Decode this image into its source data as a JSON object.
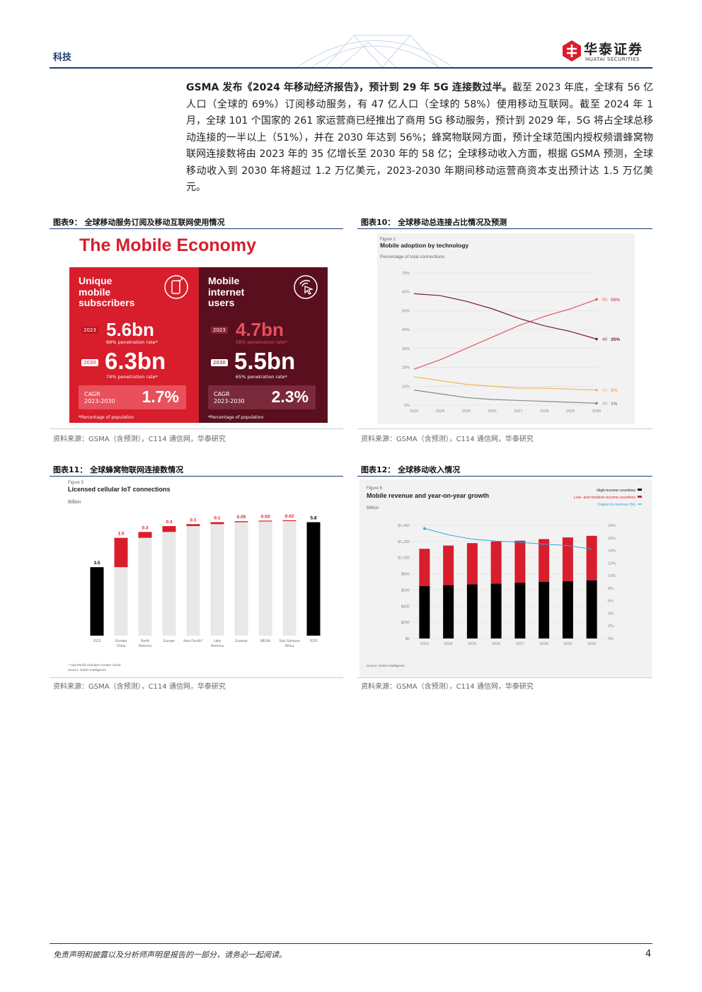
{
  "header": {
    "sector": "科技",
    "logo_cn": "华泰证券",
    "logo_en": "HUATAI SECURITIES"
  },
  "body": {
    "lead_bold": "GSMA 发布《2024 年移动经济报告》，预计到 29 年 5G 连接数过半。",
    "text": "截至 2023 年底，全球有 56 亿人口（全球的 69%）订阅移动服务，有 47 亿人口（全球的 58%）使用移动互联网。截至 2024 年 1 月，全球 101 个国家的 261 家运营商已经推出了商用 5G 移动服务，预计到 2029 年，5G 将占全球总移动连接的一半以上（51%），并在 2030 年达到 56%；蜂窝物联网方面，预计全球范围内授权频谱蜂窝物联网连接数将由 2023 年的 35 亿增长至 2030 年的 58 亿；全球移动收入方面，根据 GSMA 预测，全球移动收入到 2030 年将超过 1.2 万亿美元，2023-2030 年期间移动运营商资本支出预计达 1.5 万亿美元。"
  },
  "figures": {
    "fig9": {
      "label": "图表9：  全球移动服务订阅及移动互联网使用情况",
      "source": "资料来源：GSMA（含预测），C114 通信网，华泰研究",
      "title": "The Mobile Economy",
      "left": {
        "heading_lines": [
          "Unique",
          "mobile",
          "subscribers"
        ],
        "icon": "phone-check-icon",
        "y1": "2023",
        "v1": "5.6bn",
        "p1": "69% penetration rate*",
        "y2": "2030",
        "v2": "6.3bn",
        "p2": "74% penetration rate*",
        "cagr_label": "CAGR\n2023-2030",
        "cagr": "1.7%",
        "footnote": "*Percentage of population"
      },
      "right": {
        "heading_lines": [
          "Mobile",
          "internet",
          "users"
        ],
        "icon": "cursor-signal-icon",
        "y1": "2023",
        "v1": "4.7bn",
        "p1": "58% penetration rate*",
        "y2": "2030",
        "v2": "5.5bn",
        "p2": "65% penetration rate*",
        "cagr_label": "CAGR\n2023-2030",
        "cagr": "2.3%",
        "footnote": "*Percentage of population"
      },
      "colors": {
        "red": "#d81e2c",
        "maroon": "#5a0f1f"
      }
    },
    "fig10": {
      "label": "图表10：  全球移动总连接占比情况及预测",
      "source": "资料来源：GSMA（含预测），C114 通信网，华泰研究",
      "figure_no": "Figure 2",
      "chart_title": "Mobile adoption by technology",
      "subtitle": "Percentage of total connections"
    },
    "fig11": {
      "label": "图表11：  全球蜂窝物联网连接数情况",
      "source": "资料来源：GSMA（含预测），C114 通信网，华泰研究",
      "figure_no": "Figure 5",
      "chart_title": "Licensed cellular IoT connections",
      "unit": "Billion",
      "footnote1": "* Asia Pacific excludes Greater China",
      "footnote2": "Source: GSMA Intelligence"
    },
    "fig12": {
      "label": "图表12：  全球移动收入情况",
      "source": "资料来源：GSMA（含预测），C114 通信网，华泰研究",
      "figure_no": "Figure 6",
      "chart_title": "Mobile revenue and year-on-year growth",
      "unit": "Billion",
      "legend": [
        "High-income countries",
        "Low- and medium-income countries",
        "Capex to revenue (%)"
      ],
      "source_note": "Source: GSMA Intelligence"
    }
  },
  "chart_data": [
    {
      "type": "line",
      "title": "Mobile adoption by technology",
      "ylabel": "Percentage of total connections",
      "x": [
        2023,
        2024,
        2025,
        2026,
        2027,
        2028,
        2029,
        2030
      ],
      "ylim": [
        0,
        70
      ],
      "yticks": [
        "0%",
        "10%",
        "20%",
        "30%",
        "40%",
        "50%",
        "60%",
        "70%"
      ],
      "series": [
        {
          "name": "5G",
          "label": "5G",
          "end_label": "56%",
          "color": "#e05a63",
          "values": [
            19,
            24,
            30,
            36,
            42,
            47,
            51,
            56
          ]
        },
        {
          "name": "4G",
          "label": "4G",
          "end_label": "35%",
          "color": "#7a1a2e",
          "values": [
            59,
            58,
            55,
            51,
            46,
            42,
            39,
            35
          ]
        },
        {
          "name": "3G",
          "label": "3G",
          "end_label": "8%",
          "color": "#f2b35a",
          "values": [
            15,
            13,
            11,
            10,
            9,
            9,
            8.5,
            8
          ]
        },
        {
          "name": "2G",
          "label": "2G",
          "end_label": "1%",
          "color": "#888888",
          "values": [
            8,
            6,
            4,
            3,
            2.5,
            2,
            1.5,
            1
          ]
        }
      ]
    },
    {
      "type": "bar",
      "title": "Licensed cellular IoT connections",
      "ylabel": "Billion",
      "categories": [
        "2023",
        "Greater China",
        "North America",
        "Europe",
        "Asia Pacific*",
        "Latin America",
        "Eurasia",
        "MENA",
        "Sub-Saharan Africa",
        "2030"
      ],
      "values": [
        3.5,
        1.5,
        0.3,
        0.3,
        0.1,
        0.1,
        0.05,
        0.03,
        0.02,
        5.8
      ],
      "labels": [
        "3.5",
        "1.5",
        "0.3",
        "0.3",
        "0.1",
        "0.1",
        "0.05",
        "0.03",
        "0.02",
        "5.8"
      ],
      "kind": [
        "total",
        "increment",
        "increment",
        "increment",
        "increment",
        "increment",
        "increment",
        "increment",
        "increment",
        "total"
      ],
      "ylim": [
        0,
        6
      ]
    },
    {
      "type": "bar",
      "title": "Mobile revenue and year-on-year growth",
      "ylabel": "Billion",
      "categories": [
        "2023",
        "2024",
        "2025",
        "2026",
        "2027",
        "2028",
        "2029",
        "2030"
      ],
      "ylim": [
        0,
        1400
      ],
      "yticks": [
        "$0",
        "$200",
        "$400",
        "$600",
        "$800",
        "$1,000",
        "$1,200",
        "$1,400"
      ],
      "y2lim": [
        0,
        18
      ],
      "y2ticks": [
        "0%",
        "2%",
        "4%",
        "6%",
        "8%",
        "10%",
        "12%",
        "14%",
        "16%",
        "18%"
      ],
      "series": [
        {
          "name": "High-income countries",
          "color": "#000000",
          "values": [
            650,
            660,
            670,
            680,
            690,
            700,
            710,
            720
          ]
        },
        {
          "name": "Low- and medium-income countries",
          "color": "#d81e2c",
          "values": [
            460,
            490,
            510,
            520,
            520,
            530,
            540,
            550
          ]
        },
        {
          "name": "Capex to revenue (%)",
          "color": "#29a8e0",
          "axis": "right",
          "values": [
            17.5,
            16.5,
            15.8,
            15.5,
            15.3,
            15.0,
            14.8,
            14.2
          ]
        }
      ]
    }
  ]
}
